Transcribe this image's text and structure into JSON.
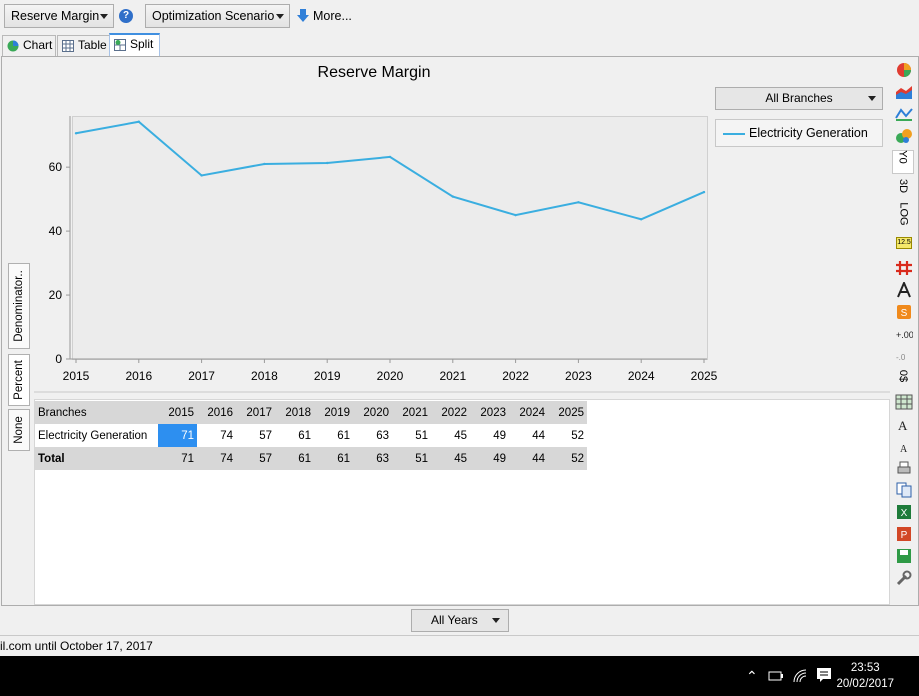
{
  "toolbar": {
    "indicator_select": "Reserve Margin",
    "scenario_select": "Optimization Scenario",
    "more_label": "More..."
  },
  "tabs": [
    {
      "label": "Chart"
    },
    {
      "label": "Table"
    },
    {
      "label": "Split",
      "active": true
    }
  ],
  "chart": {
    "branch_select": "All Branches",
    "vertical_tabs": [
      "Denominator..",
      "Percent",
      "None"
    ]
  },
  "chart_data": {
    "type": "line",
    "title": "Reserve Margin",
    "xlabel": "",
    "ylabel": "",
    "x": [
      "2015",
      "2016",
      "2017",
      "2018",
      "2019",
      "2020",
      "2021",
      "2022",
      "2023",
      "2024",
      "2025"
    ],
    "series": [
      {
        "name": "Electricity Generation",
        "values": [
          70.6,
          74.2,
          57.4,
          61.0,
          61.3,
          63.2,
          50.8,
          45.0,
          49.0,
          43.7,
          52.2
        ],
        "color": "#3aaee0"
      }
    ],
    "yticks": [
      "0",
      "20",
      "40",
      "60"
    ],
    "ylim": [
      0,
      76
    ],
    "grid": false,
    "legend": "right"
  },
  "table": {
    "header_first": "Branches",
    "years": [
      "2015",
      "2016",
      "2017",
      "2018",
      "2019",
      "2020",
      "2021",
      "2022",
      "2023",
      "2024",
      "2025"
    ],
    "rows": [
      {
        "label": "Electricity Generation",
        "values": [
          "71",
          "74",
          "57",
          "61",
          "61",
          "63",
          "51",
          "45",
          "49",
          "44",
          "52"
        ]
      }
    ],
    "total": {
      "label": "Total",
      "values": [
        "71",
        "74",
        "57",
        "61",
        "61",
        "63",
        "51",
        "45",
        "49",
        "44",
        "52"
      ]
    }
  },
  "right_strip": {
    "y0": "Y0",
    "three_d": "3D",
    "log": "LOG",
    "value_badge": "12.5",
    "zero_label": "0$"
  },
  "years_select": "All Years",
  "status_text": "il.com until October 17, 2017",
  "taskbar": {
    "time": "23:53",
    "date": "20/02/2017"
  },
  "colors": {
    "accent": "#2d8ff0",
    "series": "#3aaee0"
  }
}
